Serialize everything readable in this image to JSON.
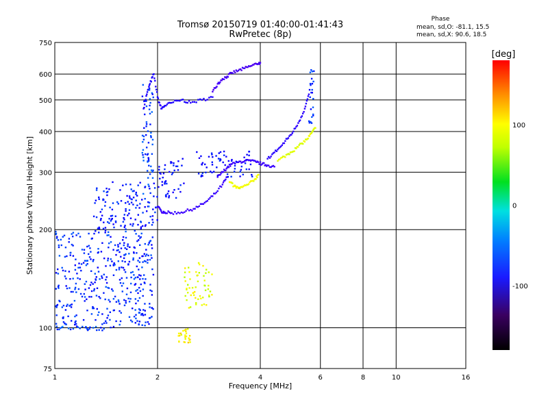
{
  "chart_data": {
    "type": "scatter",
    "title": "Tromsø 20150719 01:40:00-01:41:43",
    "subtitle": "RwPretec (8p)",
    "xlabel": "Frequency [MHz]",
    "ylabel": "Stationary phase Virtual Height [km]",
    "xscale": "log",
    "yscale": "log",
    "xlim": [
      1,
      16
    ],
    "ylim": [
      75,
      750
    ],
    "xticks": [
      1,
      2,
      4,
      6,
      8,
      10,
      16
    ],
    "xtick_labels": [
      "1",
      "2",
      "4",
      "6",
      "8",
      "10",
      "16"
    ],
    "yticks": [
      75,
      100,
      200,
      300,
      400,
      500,
      600,
      750
    ],
    "ytick_labels": [
      "75",
      "100",
      "200",
      "300",
      "400",
      "500",
      "600",
      "750"
    ],
    "grid": true,
    "stats": {
      "heading": "Phase",
      "o_line": "mean, sd,O: -81.1, 15.5",
      "x_line": "mean, sd,X:  90.6, 18.5"
    },
    "colorbar": {
      "label": "[deg]",
      "min": -180,
      "max": 180,
      "ticks": [
        100,
        0,
        -100
      ],
      "tick_labels": [
        "100",
        "0",
        "-100"
      ],
      "colormap": "rainbow-black-to-red"
    },
    "traces": [
      {
        "x": [
          1.82,
          1.86,
          1.9,
          1.95,
          2.0,
          2.05,
          2.1,
          2.2,
          2.35,
          2.5,
          2.7,
          2.9
        ],
        "y": [
          470,
          520,
          560,
          600,
          510,
          470,
          480,
          490,
          500,
          490,
          500,
          510
        ],
        "phase": -105
      },
      {
        "x": [
          2.9,
          3.0,
          3.1,
          3.2,
          3.3,
          3.45,
          3.6,
          3.75,
          3.9,
          4.0
        ],
        "y": [
          530,
          560,
          580,
          590,
          605,
          615,
          625,
          635,
          645,
          650
        ],
        "phase": -130
      },
      {
        "x": [
          2.0,
          2.05,
          2.1,
          2.2,
          2.35,
          2.5,
          2.65,
          2.8,
          2.95,
          3.1,
          3.2
        ],
        "y": [
          235,
          228,
          226,
          225,
          226,
          230,
          236,
          245,
          258,
          275,
          290
        ],
        "phase": -120
      },
      {
        "x": [
          3.0,
          3.1,
          3.2,
          3.3,
          3.45,
          3.6,
          3.75,
          3.9,
          4.05,
          4.2,
          4.4
        ],
        "y": [
          290,
          300,
          310,
          318,
          322,
          325,
          325,
          322,
          318,
          315,
          312
        ],
        "phase": -120
      },
      {
        "x": [
          4.5,
          4.7,
          4.9,
          5.1,
          5.3,
          5.5,
          5.65,
          5.8
        ],
        "y": [
          325,
          335,
          345,
          355,
          368,
          380,
          395,
          410
        ],
        "phase": 105
      },
      {
        "x": [
          4.2,
          4.4,
          4.6,
          4.8,
          5.0,
          5.2,
          5.4,
          5.55
        ],
        "y": [
          330,
          345,
          360,
          380,
          400,
          430,
          470,
          520
        ],
        "phase": -110
      },
      {
        "x": [
          3.25,
          3.35,
          3.45,
          3.55,
          3.7,
          3.85,
          3.95
        ],
        "y": [
          280,
          272,
          268,
          270,
          276,
          285,
          295
        ],
        "phase": 110
      }
    ],
    "clusters": [
      {
        "x": [
          1.0,
          1.4
        ],
        "y": [
          98,
          101
        ],
        "phase": -70
      },
      {
        "x": [
          1.0,
          1.95
        ],
        "y": [
          100,
          200
        ],
        "phase": -80
      },
      {
        "x": [
          1.3,
          2.0
        ],
        "y": [
          200,
          280
        ],
        "phase": -85
      },
      {
        "x": [
          1.8,
          1.95
        ],
        "y": [
          230,
          560
        ],
        "phase": -75
      },
      {
        "x": [
          2.0,
          2.4
        ],
        "y": [
          250,
          330
        ],
        "phase": -90
      },
      {
        "x": [
          2.6,
          3.8
        ],
        "y": [
          290,
          350
        ],
        "phase": -90
      },
      {
        "x": [
          5.55,
          5.75
        ],
        "y": [
          420,
          620
        ],
        "phase": -80
      },
      {
        "x": [
          2.4,
          2.9
        ],
        "y": [
          115,
          160
        ],
        "phase": 105
      },
      {
        "x": [
          2.3,
          2.5
        ],
        "y": [
          90,
          100
        ],
        "phase": 115
      }
    ]
  }
}
